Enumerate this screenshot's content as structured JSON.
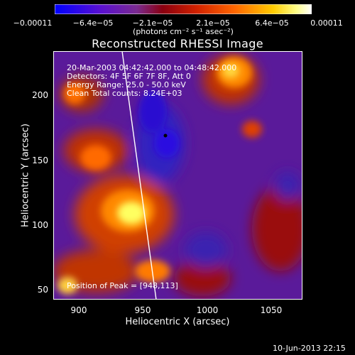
{
  "colorbar": {
    "colors": [
      "#0000ff",
      "#5000c8",
      "#7a2a9a",
      "#8b0000",
      "#cc2200",
      "#ff5500",
      "#ffaa00",
      "#ffff66",
      "#ffffff"
    ],
    "tick_labels": [
      "−0.00011",
      "−6.4e−05",
      "−2.1e−05",
      "2.1e−05",
      "6.4e−05",
      "0.00011"
    ],
    "units": "(photons cm⁻² s⁻¹ asec⁻²)"
  },
  "title": "Reconstructed RHESSI Image",
  "info_lines": [
    "20-Mar-2003 04:42:42.000 to 04:48:42.000",
    "Detectors: 4F 5F 6F 7F 8F, Att 0",
    "Energy Range: 25.0 - 50.0 keV",
    "Clean     Total counts: 8.24E+03"
  ],
  "axes": {
    "xlabel": "Heliocentric X (arcsec)",
    "ylabel": "Heliocentric Y (arcsec)",
    "x_ticks": [
      "900",
      "950",
      "1000",
      "1050"
    ],
    "y_ticks": [
      "200",
      "150",
      "100",
      "50"
    ],
    "xlim": [
      882,
      1072
    ],
    "ylim": [
      40,
      230
    ]
  },
  "peak_label": "Position of Peak = [948,113]",
  "peak_position": [
    948,
    113
  ],
  "timestamp": "10-Jun-2013 22:15"
}
